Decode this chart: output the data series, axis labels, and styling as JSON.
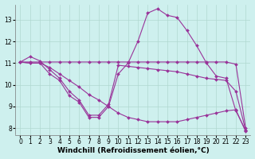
{
  "xlabel": "Windchill (Refroidissement éolien,°C)",
  "background_color": "#cef0ee",
  "grid_color": "#b0d8d0",
  "line_color": "#993399",
  "xlim": [
    -0.5,
    23.5
  ],
  "ylim": [
    7.7,
    13.7
  ],
  "xticks": [
    0,
    1,
    2,
    3,
    4,
    5,
    6,
    7,
    8,
    9,
    10,
    11,
    12,
    13,
    14,
    15,
    16,
    17,
    18,
    19,
    20,
    21,
    22,
    23
  ],
  "yticks": [
    8,
    9,
    10,
    11,
    12,
    13
  ],
  "series": [
    [
      11.05,
      11.3,
      11.1,
      10.7,
      10.3,
      9.7,
      9.3,
      8.6,
      8.6,
      9.1,
      10.9,
      10.85,
      10.8,
      10.75,
      10.7,
      10.65,
      10.6,
      10.5,
      10.4,
      10.3,
      10.25,
      10.2,
      9.7,
      7.9
    ],
    [
      11.05,
      11.05,
      11.05,
      11.05,
      11.05,
      11.05,
      11.05,
      11.05,
      11.05,
      11.05,
      11.05,
      11.05,
      11.05,
      11.05,
      11.05,
      11.05,
      11.05,
      11.05,
      11.05,
      11.05,
      11.05,
      11.05,
      10.95,
      8.0
    ],
    [
      11.05,
      11.0,
      11.0,
      10.5,
      10.2,
      9.5,
      9.2,
      8.5,
      8.5,
      9.0,
      10.5,
      11.0,
      12.0,
      13.3,
      13.5,
      13.2,
      13.1,
      12.5,
      11.8,
      11.0,
      10.4,
      10.3,
      8.8,
      7.9
    ],
    [
      11.05,
      11.0,
      11.0,
      10.8,
      10.5,
      10.2,
      9.9,
      9.55,
      9.3,
      9.0,
      8.7,
      8.5,
      8.4,
      8.3,
      8.3,
      8.3,
      8.3,
      8.4,
      8.5,
      8.6,
      8.7,
      8.8,
      8.85,
      7.85
    ]
  ],
  "marker": "D",
  "markersize": 2.0,
  "linewidth": 0.8,
  "tick_fontsize": 5.5,
  "xlabel_fontsize": 6.5
}
